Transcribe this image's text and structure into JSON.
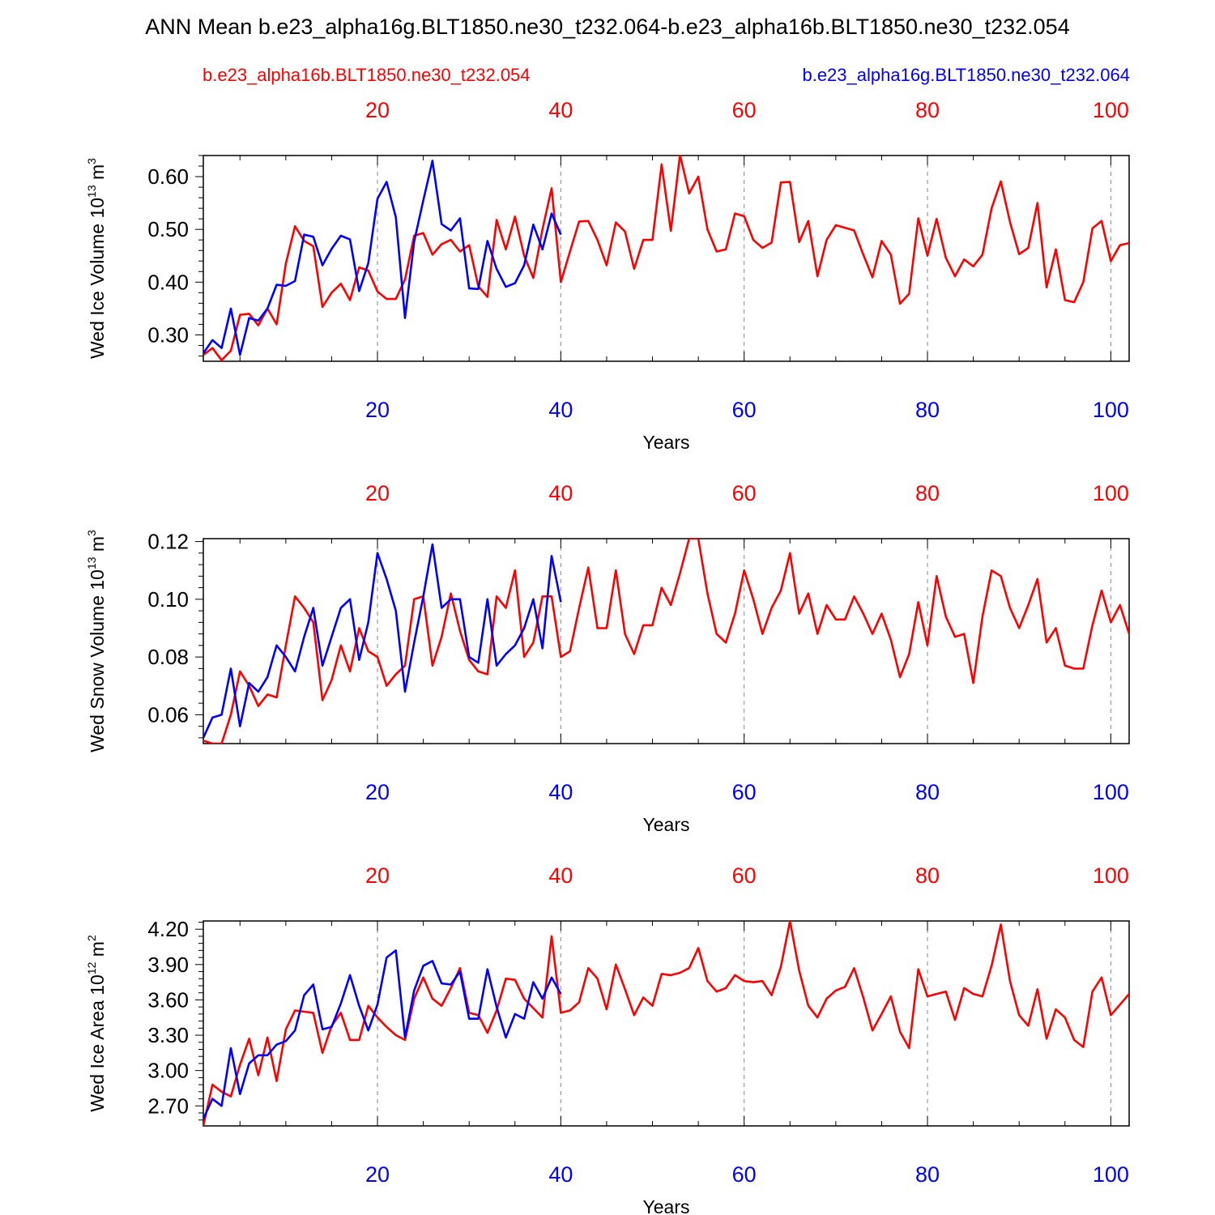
{
  "title": "ANN Mean b.e23_alpha16g.BLT1850.ne30_t232.064-b.e23_alpha16b.BLT1850.ne30_t232.054",
  "legend": {
    "red_case": "b.e23_alpha16b.BLT1850.ne30_t232.054",
    "blue_case": "b.e23_alpha16g.BLT1850.ne30_t232.064"
  },
  "colors": {
    "red": "#ff0000",
    "blue": "#0000ff",
    "axis": "#000000",
    "grid": "#888888"
  },
  "chart_data": [
    {
      "type": "line",
      "name": "wed-ice-volume",
      "ylabel": "Wed Ice Volume 10",
      "ylabel_exp": "13",
      "ylabel_unit": " m",
      "ylabel_unit_exp": "3",
      "xlabel": "Years",
      "xlim": [
        1,
        102
      ],
      "ylim": [
        0.25,
        0.64
      ],
      "yticks": [
        0.3,
        0.4,
        0.5,
        0.6
      ],
      "ytick_labels": [
        "0.30",
        "0.40",
        "0.50",
        "0.60"
      ],
      "xticks": [
        20,
        40,
        60,
        80,
        100
      ],
      "xtick_labels_top": [
        "20",
        "40",
        "60",
        "80",
        "100"
      ],
      "xtick_labels_bottom": [
        "20",
        "40",
        "60",
        "80",
        "100"
      ],
      "series": [
        {
          "name": "b.e23_alpha16b.BLT1850.ne30_t232.054",
          "color": "red",
          "values": [
            0.262,
            0.275,
            0.252,
            0.27,
            0.338,
            0.34,
            0.318,
            0.35,
            0.32,
            0.435,
            0.506,
            0.478,
            0.468,
            0.353,
            0.38,
            0.397,
            0.366,
            0.428,
            0.422,
            0.382,
            0.368,
            0.368,
            0.405,
            0.488,
            0.493,
            0.452,
            0.472,
            0.48,
            0.458,
            0.47,
            0.392,
            0.372,
            0.518,
            0.462,
            0.524,
            0.45,
            0.408,
            0.5,
            0.578,
            0.4,
            0.458,
            0.515,
            0.516,
            0.48,
            0.432,
            0.513,
            0.496,
            0.425,
            0.48,
            0.48,
            0.623,
            0.497,
            0.641,
            0.568,
            0.6,
            0.5,
            0.458,
            0.462,
            0.53,
            0.525,
            0.48,
            0.465,
            0.475,
            0.589,
            0.59,
            0.476,
            0.516,
            0.411,
            0.48,
            0.508,
            0.503,
            0.498,
            0.452,
            0.409,
            0.478,
            0.452,
            0.359,
            0.378,
            0.521,
            0.45,
            0.52,
            0.446,
            0.411,
            0.443,
            0.43,
            0.452,
            0.54,
            0.591,
            0.514,
            0.453,
            0.465,
            0.55,
            0.39,
            0.462,
            0.366,
            0.362,
            0.4,
            0.502,
            0.516,
            0.44,
            0.47,
            0.474
          ]
        },
        {
          "name": "b.e23_alpha16g.BLT1850.ne30_t232.064",
          "color": "blue",
          "values": [
            0.265,
            0.29,
            0.275,
            0.35,
            0.262,
            0.332,
            0.327,
            0.35,
            0.395,
            0.393,
            0.402,
            0.49,
            0.486,
            0.432,
            0.463,
            0.488,
            0.481,
            0.383,
            0.436,
            0.558,
            0.59,
            0.523,
            0.332,
            0.477,
            0.555,
            0.63,
            0.51,
            0.498,
            0.521,
            0.388,
            0.387,
            0.478,
            0.425,
            0.391,
            0.398,
            0.432,
            0.509,
            0.462,
            0.53,
            0.49
          ]
        }
      ]
    },
    {
      "type": "line",
      "name": "wed-snow-volume",
      "ylabel": "Wed Snow Volume 10",
      "ylabel_exp": "13",
      "ylabel_unit": " m",
      "ylabel_unit_exp": "3",
      "xlabel": "Years",
      "xlim": [
        1,
        102
      ],
      "ylim": [
        0.05,
        0.121
      ],
      "yticks": [
        0.06,
        0.08,
        0.1,
        0.12
      ],
      "ytick_labels": [
        "0.06",
        "0.08",
        "0.10",
        "0.12"
      ],
      "xticks": [
        20,
        40,
        60,
        80,
        100
      ],
      "xtick_labels_top": [
        "20",
        "40",
        "60",
        "80",
        "100"
      ],
      "xtick_labels_bottom": [
        "20",
        "40",
        "60",
        "80",
        "100"
      ],
      "series": [
        {
          "name": "b.e23_alpha16b.BLT1850.ne30_t232.054",
          "color": "red",
          "values": [
            0.051,
            0.05,
            0.05,
            0.06,
            0.075,
            0.07,
            0.063,
            0.067,
            0.066,
            0.084,
            0.101,
            0.097,
            0.092,
            0.065,
            0.072,
            0.084,
            0.075,
            0.09,
            0.082,
            0.08,
            0.07,
            0.074,
            0.077,
            0.1,
            0.101,
            0.077,
            0.087,
            0.102,
            0.089,
            0.079,
            0.075,
            0.074,
            0.101,
            0.097,
            0.11,
            0.08,
            0.085,
            0.101,
            0.101,
            0.08,
            0.082,
            0.097,
            0.111,
            0.09,
            0.09,
            0.11,
            0.088,
            0.081,
            0.091,
            0.091,
            0.104,
            0.098,
            0.109,
            0.121,
            0.121,
            0.102,
            0.088,
            0.085,
            0.095,
            0.11,
            0.1,
            0.088,
            0.097,
            0.103,
            0.116,
            0.095,
            0.102,
            0.088,
            0.098,
            0.093,
            0.093,
            0.101,
            0.095,
            0.088,
            0.095,
            0.086,
            0.073,
            0.081,
            0.099,
            0.084,
            0.108,
            0.094,
            0.087,
            0.088,
            0.071,
            0.094,
            0.11,
            0.108,
            0.097,
            0.09,
            0.098,
            0.107,
            0.085,
            0.09,
            0.077,
            0.076,
            0.076,
            0.091,
            0.103,
            0.092,
            0.098,
            0.088
          ]
        },
        {
          "name": "b.e23_alpha16g.BLT1850.ne30_t232.064",
          "color": "blue",
          "values": [
            0.052,
            0.059,
            0.06,
            0.076,
            0.056,
            0.071,
            0.068,
            0.073,
            0.084,
            0.08,
            0.075,
            0.087,
            0.097,
            0.077,
            0.087,
            0.097,
            0.1,
            0.079,
            0.092,
            0.116,
            0.107,
            0.096,
            0.068,
            0.085,
            0.101,
            0.119,
            0.097,
            0.1,
            0.1,
            0.08,
            0.078,
            0.1,
            0.077,
            0.081,
            0.084,
            0.09,
            0.1,
            0.083,
            0.115,
            0.099
          ]
        }
      ]
    },
    {
      "type": "line",
      "name": "wed-ice-area",
      "ylabel": "Wed Ice Area 10",
      "ylabel_exp": "12",
      "ylabel_unit": " m",
      "ylabel_unit_exp": "2",
      "xlabel": "Years",
      "xlim": [
        1,
        102
      ],
      "ylim": [
        2.53,
        4.27
      ],
      "yticks": [
        2.7,
        3.0,
        3.3,
        3.6,
        3.9,
        4.2
      ],
      "ytick_labels": [
        "2.70",
        "3.00",
        "3.30",
        "3.60",
        "3.90",
        "4.20"
      ],
      "xticks": [
        20,
        40,
        60,
        80,
        100
      ],
      "xtick_labels_top": [
        "20",
        "40",
        "60",
        "80",
        "100"
      ],
      "xtick_labels_bottom": [
        "20",
        "40",
        "60",
        "80",
        "100"
      ],
      "series": [
        {
          "name": "b.e23_alpha16b.BLT1850.ne30_t232.054",
          "color": "red",
          "values": [
            2.53,
            2.88,
            2.82,
            2.78,
            3.05,
            3.27,
            2.96,
            3.28,
            2.91,
            3.35,
            3.51,
            3.5,
            3.49,
            3.15,
            3.38,
            3.49,
            3.26,
            3.26,
            3.55,
            3.45,
            3.37,
            3.3,
            3.26,
            3.61,
            3.79,
            3.61,
            3.55,
            3.7,
            3.87,
            3.49,
            3.47,
            3.32,
            3.51,
            3.78,
            3.77,
            3.61,
            3.53,
            3.45,
            4.14,
            3.49,
            3.51,
            3.58,
            3.87,
            3.78,
            3.52,
            3.9,
            3.69,
            3.47,
            3.62,
            3.55,
            3.82,
            3.81,
            3.83,
            3.87,
            4.04,
            3.76,
            3.67,
            3.7,
            3.81,
            3.76,
            3.75,
            3.76,
            3.64,
            3.88,
            4.27,
            3.85,
            3.55,
            3.45,
            3.61,
            3.68,
            3.71,
            3.87,
            3.62,
            3.34,
            3.48,
            3.63,
            3.33,
            3.19,
            3.86,
            3.63,
            3.65,
            3.67,
            3.43,
            3.7,
            3.65,
            3.63,
            3.89,
            4.24,
            3.76,
            3.47,
            3.38,
            3.69,
            3.27,
            3.52,
            3.45,
            3.26,
            3.2,
            3.67,
            3.79,
            3.47,
            3.56,
            3.65
          ]
        },
        {
          "name": "b.e23_alpha16g.BLT1850.ne30_t232.064",
          "color": "blue",
          "values": [
            2.59,
            2.76,
            2.7,
            3.19,
            2.8,
            3.06,
            3.13,
            3.13,
            3.22,
            3.25,
            3.34,
            3.64,
            3.73,
            3.35,
            3.37,
            3.57,
            3.81,
            3.55,
            3.34,
            3.56,
            3.96,
            4.02,
            3.28,
            3.68,
            3.89,
            3.93,
            3.74,
            3.73,
            3.84,
            3.44,
            3.44,
            3.86,
            3.54,
            3.28,
            3.48,
            3.44,
            3.75,
            3.61,
            3.79,
            3.65
          ]
        }
      ]
    }
  ]
}
